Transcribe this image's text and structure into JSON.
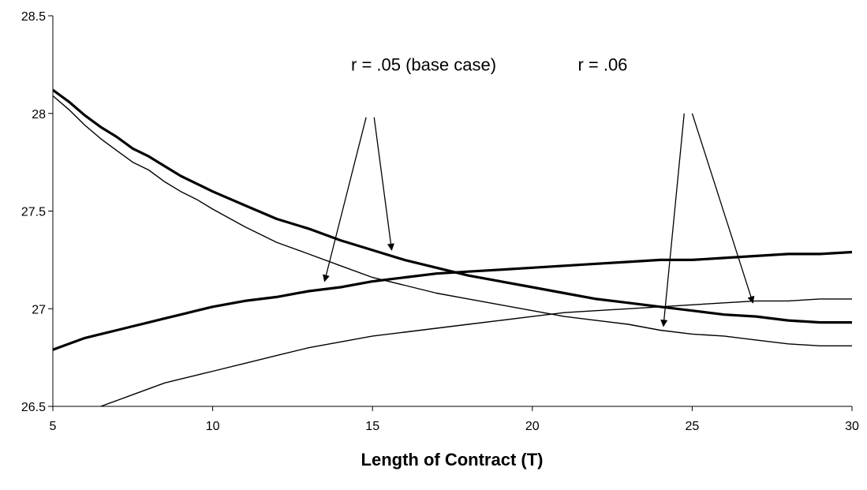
{
  "chart_data": {
    "type": "line",
    "xlabel": "Length of Contract (T)",
    "ylabel": "",
    "xlim": [
      5,
      30
    ],
    "ylim": [
      26.5,
      28.5
    ],
    "x_ticks": [
      "5",
      "10",
      "15",
      "20",
      "25",
      "30"
    ],
    "y_ticks": [
      "26.5",
      "27",
      "27.5",
      "28",
      "28.5"
    ],
    "grid": false,
    "legend": "none",
    "series": [
      {
        "style": "thick",
        "x": [
          5,
          5.5,
          6,
          6.5,
          7,
          7.5,
          8,
          8.5,
          9,
          9.5,
          10,
          11,
          12,
          13,
          14,
          15,
          16,
          17,
          18,
          19,
          20,
          21,
          22,
          23,
          24,
          25,
          26,
          27,
          28,
          29,
          30
        ],
        "y": [
          28.12,
          28.06,
          27.99,
          27.93,
          27.88,
          27.82,
          27.78,
          27.73,
          27.68,
          27.64,
          27.6,
          27.53,
          27.46,
          27.41,
          27.35,
          27.3,
          27.25,
          27.21,
          27.17,
          27.14,
          27.11,
          27.08,
          27.05,
          27.03,
          27.01,
          26.99,
          26.97,
          26.96,
          26.94,
          26.93,
          26.93
        ]
      },
      {
        "style": "thin",
        "x": [
          5,
          5.5,
          6,
          6.5,
          7,
          7.5,
          8,
          8.5,
          9,
          9.5,
          10,
          11,
          12,
          13,
          14,
          15,
          16,
          17,
          18,
          19,
          20,
          21,
          22,
          23,
          24,
          25,
          26,
          27,
          28,
          29,
          30
        ],
        "y": [
          28.09,
          28.02,
          27.94,
          27.87,
          27.81,
          27.75,
          27.71,
          27.65,
          27.6,
          27.56,
          27.51,
          27.42,
          27.34,
          27.28,
          27.22,
          27.16,
          27.12,
          27.08,
          27.05,
          27.02,
          26.99,
          26.96,
          26.94,
          26.92,
          26.89,
          26.87,
          26.86,
          26.84,
          26.82,
          26.81,
          26.81
        ]
      },
      {
        "style": "thick",
        "x": [
          5,
          5.5,
          6,
          6.5,
          7,
          7.5,
          8,
          8.5,
          9,
          9.5,
          10,
          11,
          12,
          13,
          14,
          15,
          16,
          17,
          18,
          19,
          20,
          21,
          22,
          23,
          24,
          25,
          26,
          27,
          28,
          29,
          30
        ],
        "y": [
          26.79,
          26.82,
          26.85,
          26.87,
          26.89,
          26.91,
          26.93,
          26.95,
          26.97,
          26.99,
          27.01,
          27.04,
          27.06,
          27.09,
          27.11,
          27.14,
          27.16,
          27.18,
          27.19,
          27.2,
          27.21,
          27.22,
          27.23,
          27.24,
          27.25,
          27.25,
          27.26,
          27.27,
          27.28,
          27.28,
          27.29
        ]
      },
      {
        "style": "thin",
        "x": [
          5,
          5.5,
          6,
          6.5,
          7,
          7.5,
          8,
          8.5,
          9,
          9.5,
          10,
          11,
          12,
          13,
          14,
          15,
          16,
          17,
          18,
          19,
          20,
          21,
          22,
          23,
          24,
          25,
          26,
          27,
          28,
          29,
          30
        ],
        "y": [
          26.44,
          26.46,
          26.48,
          26.5,
          26.53,
          26.56,
          26.59,
          26.62,
          26.64,
          26.66,
          26.68,
          26.72,
          26.76,
          26.8,
          26.83,
          26.86,
          26.88,
          26.9,
          26.92,
          26.94,
          26.96,
          26.98,
          26.99,
          27.0,
          27.01,
          27.02,
          27.03,
          27.04,
          27.04,
          27.05,
          27.05
        ]
      }
    ],
    "annotations": [
      {
        "text": "r = .05 (base case)",
        "label_x": 16.6,
        "label_y": 28.22,
        "arrows": [
          {
            "from": [
              14.8,
              27.98
            ],
            "to": [
              13.5,
              27.14
            ]
          },
          {
            "from": [
              15.05,
              27.98
            ],
            "to": [
              15.6,
              27.3
            ]
          }
        ]
      },
      {
        "text": "r = .06",
        "label_x": 22.2,
        "label_y": 28.22,
        "arrows": [
          {
            "from": [
              24.75,
              28.0
            ],
            "to": [
              24.1,
              26.91
            ]
          },
          {
            "from": [
              25.0,
              28.0
            ],
            "to": [
              26.9,
              27.03
            ]
          }
        ]
      }
    ]
  }
}
